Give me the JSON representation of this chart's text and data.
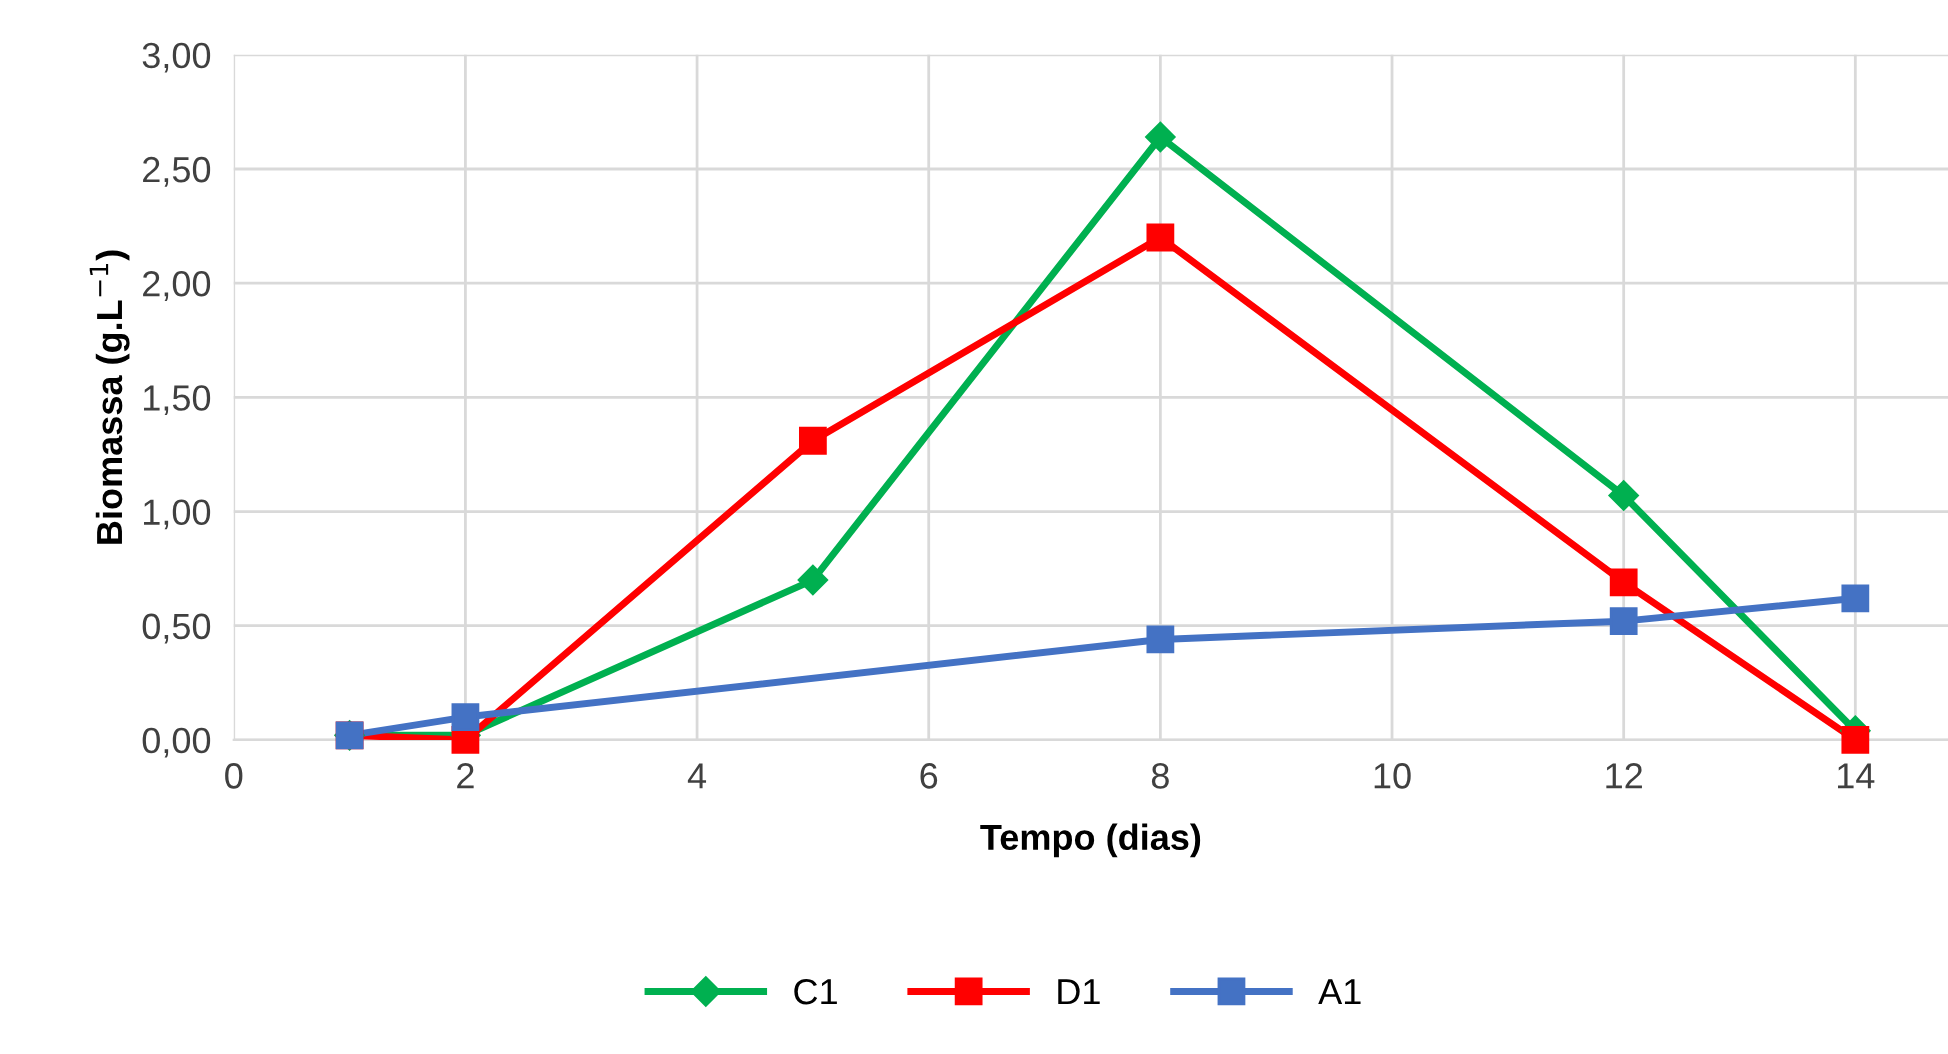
{
  "chart_data": {
    "type": "line",
    "xlabel": "Tempo (dias)",
    "ylabel": "Biomassa (g.L$^{−1}$)",
    "xlim": [
      0,
      14.8
    ],
    "xticks": [
      0,
      2,
      4,
      6,
      8,
      10,
      12,
      14
    ],
    "ylim": [
      0,
      3
    ],
    "yticks": [
      {
        "value": 0,
        "label": "0,00"
      },
      {
        "value": 0.5,
        "label": "0,50"
      },
      {
        "value": 1,
        "label": "1,00"
      },
      {
        "value": 1.5,
        "label": "1,50"
      },
      {
        "value": 2,
        "label": "2,00"
      },
      {
        "value": 2.5,
        "label": "2,50"
      },
      {
        "value": 3,
        "label": "3,00"
      }
    ],
    "grid": true,
    "legend": "bottom",
    "line_style": "solid",
    "series": [
      {
        "name": "C1",
        "color": "#00b050",
        "marker": "diamond",
        "x": [
          1,
          2,
          5,
          8,
          12,
          14
        ],
        "values": [
          0.02,
          0.02,
          0.7,
          2.64,
          1.07,
          0.04
        ]
      },
      {
        "name": "D1",
        "color": "#ff0000",
        "marker": "square",
        "x": [
          1,
          2,
          5,
          8,
          12,
          14
        ],
        "values": [
          0.02,
          0.0,
          1.31,
          2.2,
          0.69,
          0.0
        ]
      },
      {
        "name": "A1",
        "color": "#4472c4",
        "marker": "square",
        "x": [
          1,
          2,
          8,
          12,
          14
        ],
        "values": [
          0.02,
          0.1,
          0.44,
          0.52,
          0.62
        ]
      }
    ]
  }
}
